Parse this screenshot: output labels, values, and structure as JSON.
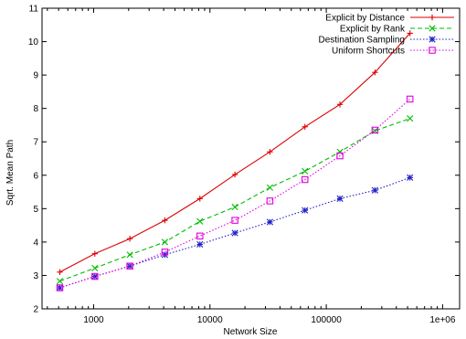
{
  "chart_data": {
    "type": "line",
    "title": "",
    "xlabel": "Network Size",
    "ylabel": "Sqrt. Mean Path",
    "x_scale": "log",
    "xlim": [
      360,
      1400000
    ],
    "ylim": [
      2,
      11
    ],
    "x_ticks": [
      {
        "value": 1000,
        "label": "1000"
      },
      {
        "value": 10000,
        "label": "10000"
      },
      {
        "value": 100000,
        "label": "100000"
      },
      {
        "value": 1000000,
        "label": "1e+06"
      }
    ],
    "y_ticks": [
      {
        "value": 2,
        "label": "2"
      },
      {
        "value": 3,
        "label": "3"
      },
      {
        "value": 4,
        "label": "4"
      },
      {
        "value": 5,
        "label": "5"
      },
      {
        "value": 6,
        "label": "6"
      },
      {
        "value": 7,
        "label": "7"
      },
      {
        "value": 8,
        "label": "8"
      },
      {
        "value": 9,
        "label": "9"
      },
      {
        "value": 10,
        "label": "10"
      },
      {
        "value": 11,
        "label": "11"
      }
    ],
    "grid": false,
    "legend_position": "top-right",
    "x": [
      512,
      1024,
      2048,
      4096,
      8192,
      16384,
      32768,
      65536,
      131072,
      262144,
      524288
    ],
    "series": [
      {
        "name": "Explicit by Distance",
        "color": "#dd0000",
        "marker": "plus",
        "dash": "solid",
        "values": [
          3.1,
          3.65,
          4.1,
          4.65,
          5.3,
          6.02,
          6.7,
          7.45,
          8.12,
          9.08,
          10.25
        ]
      },
      {
        "name": "Explicit by Rank",
        "color": "#00bb00",
        "marker": "cross",
        "dash": "dashed",
        "values": [
          2.83,
          3.22,
          3.62,
          4.0,
          4.62,
          5.05,
          5.63,
          6.12,
          6.7,
          7.33,
          7.7
        ]
      },
      {
        "name": "Destination Sampling",
        "color": "#1f1fc8",
        "marker": "star",
        "dash": "dotted",
        "values": [
          2.63,
          2.97,
          3.28,
          3.62,
          3.93,
          4.27,
          4.6,
          4.95,
          5.3,
          5.55,
          5.93
        ]
      },
      {
        "name": "Uniform Shortcuts",
        "color": "#e000e0",
        "marker": "square",
        "dash": "dotted",
        "values": [
          2.63,
          2.97,
          3.28,
          3.7,
          4.18,
          4.65,
          5.23,
          5.87,
          6.58,
          7.35,
          8.28
        ]
      }
    ]
  }
}
